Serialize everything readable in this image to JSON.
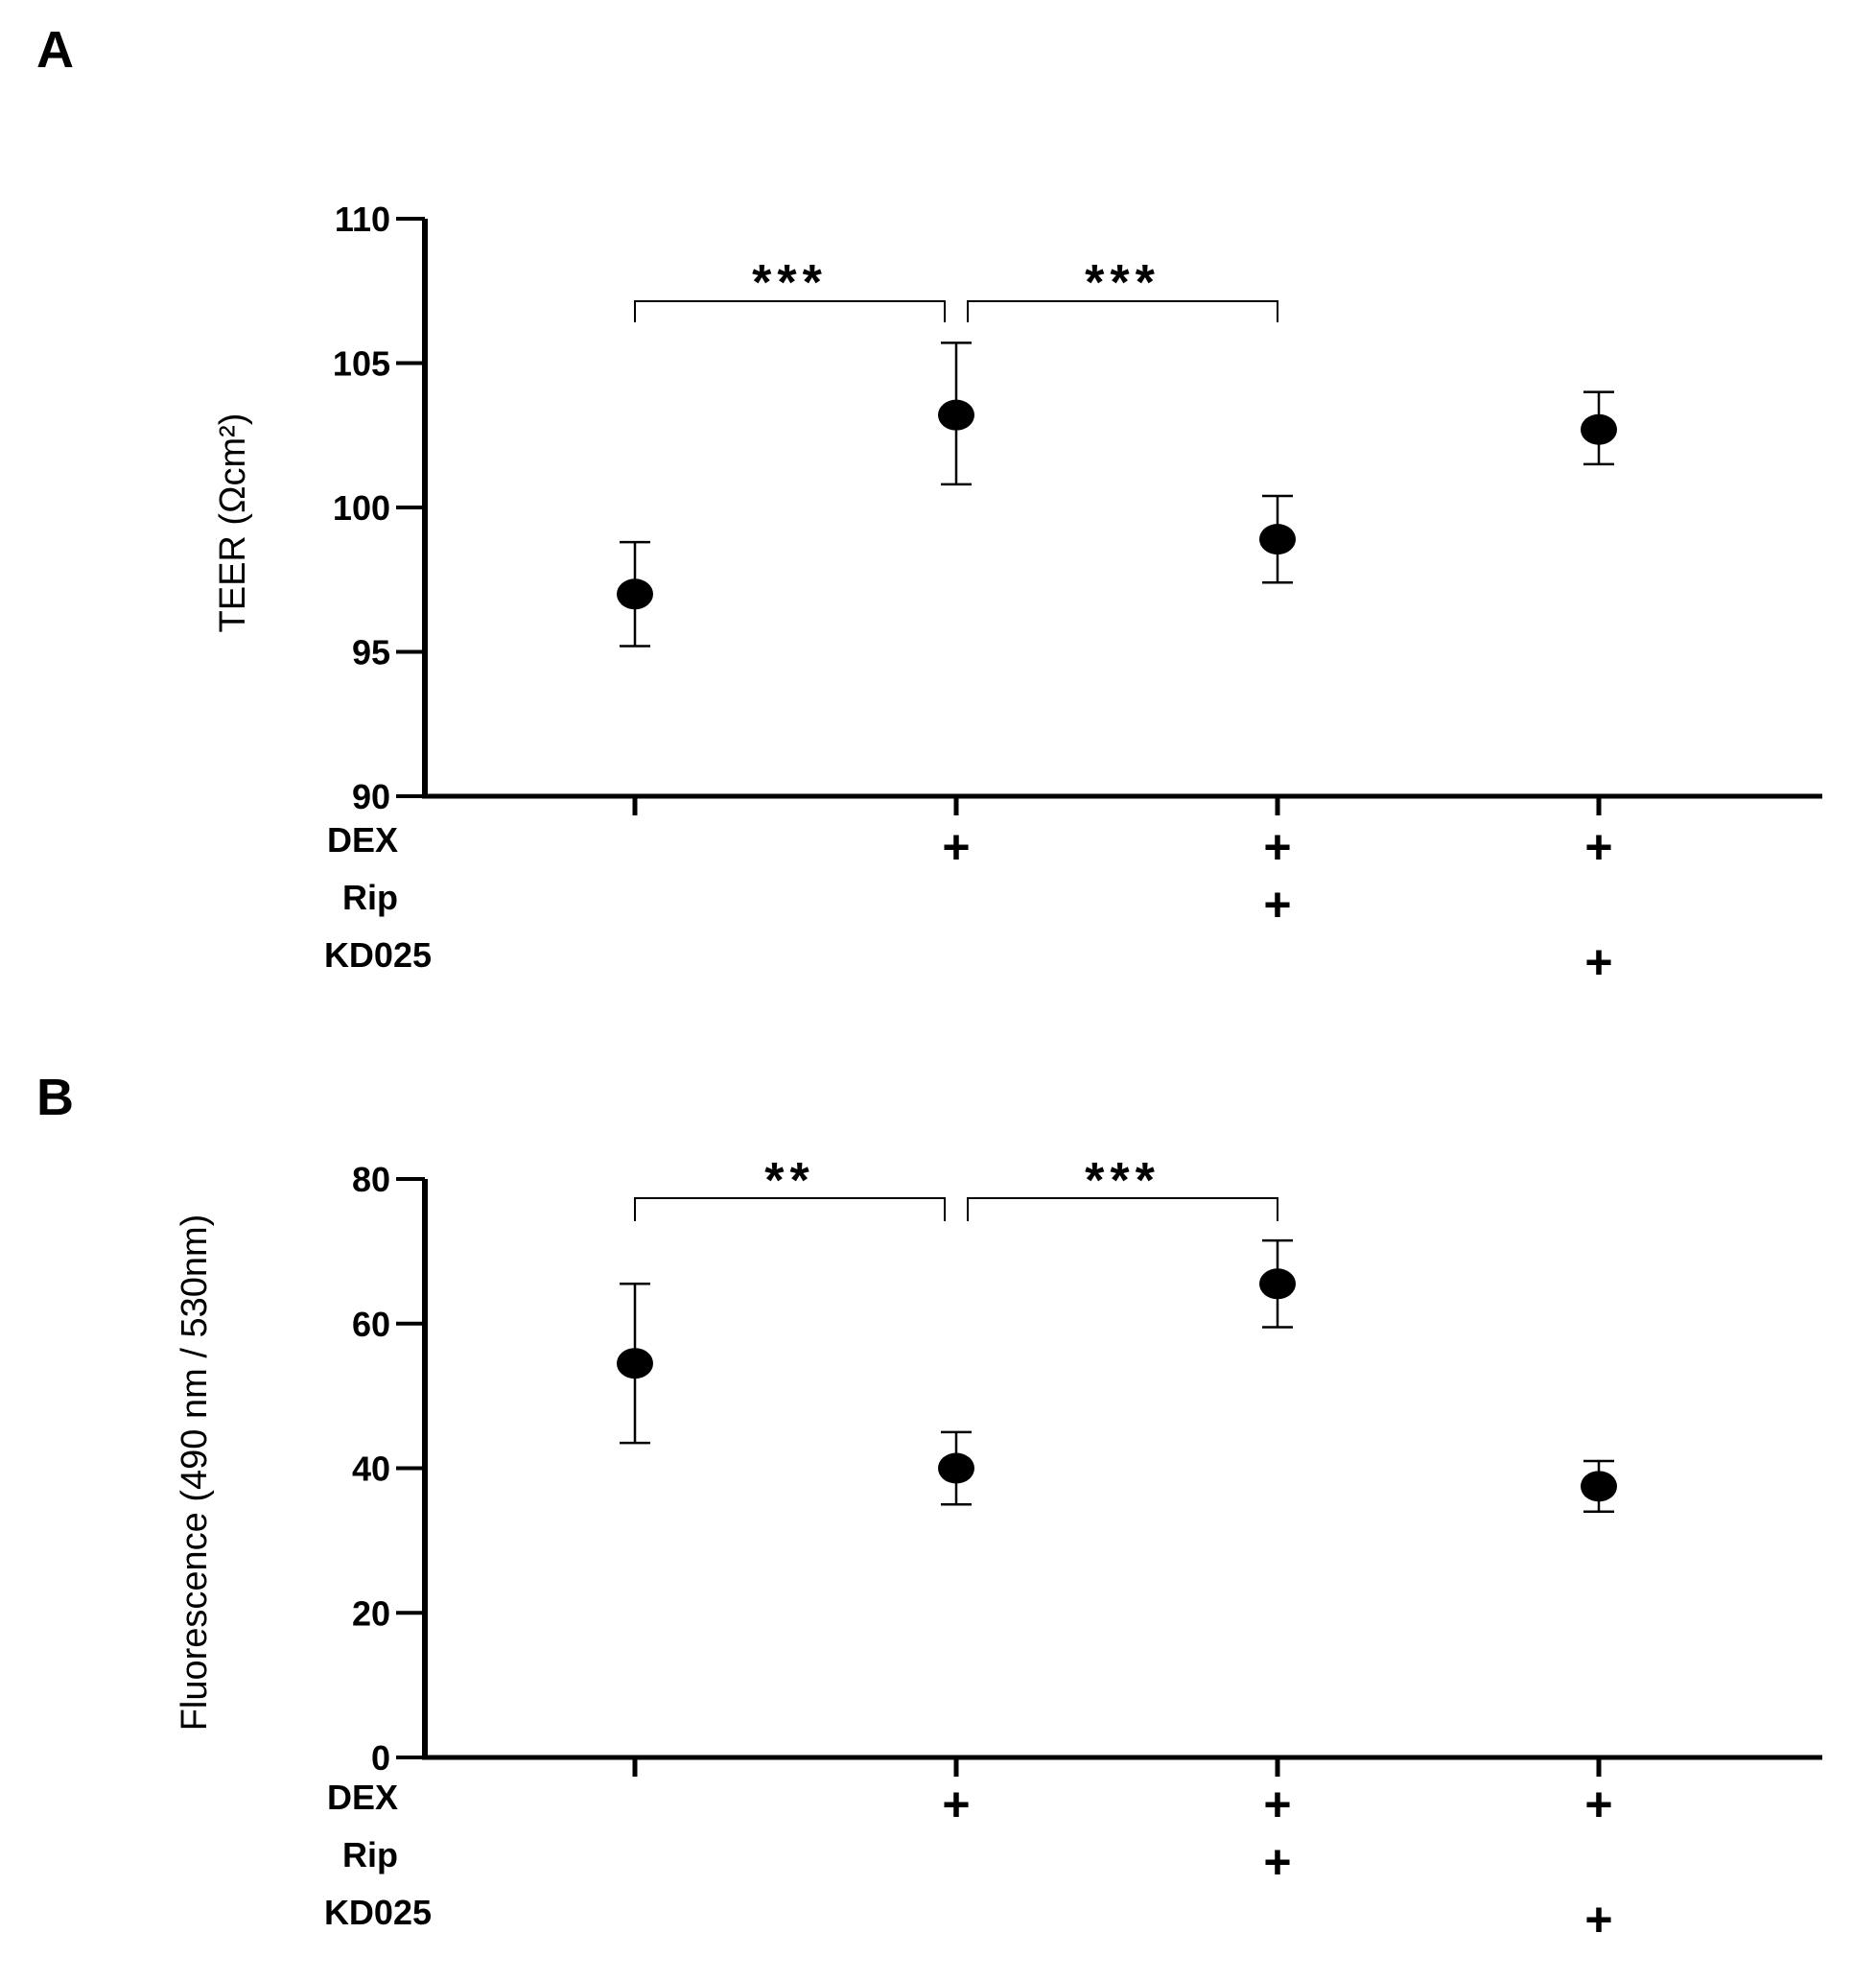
{
  "chart_data": [
    {
      "panel": "A",
      "type": "scatter",
      "ylabel": "TEER (Ωcm²)",
      "ylim": [
        90,
        110
      ],
      "yticks": [
        90,
        95,
        100,
        105,
        110
      ],
      "groups": [
        {
          "DEX": "",
          "Rip": "",
          "KD025": "",
          "mean": 97.0,
          "err_low": 95.2,
          "err_high": 98.8
        },
        {
          "DEX": "+",
          "Rip": "",
          "KD025": "",
          "mean": 103.2,
          "err_low": 100.8,
          "err_high": 105.7
        },
        {
          "DEX": "+",
          "Rip": "+",
          "KD025": "",
          "mean": 98.9,
          "err_low": 97.4,
          "err_high": 100.4
        },
        {
          "DEX": "+",
          "Rip": "",
          "KD025": "+",
          "mean": 102.7,
          "err_low": 101.5,
          "err_high": 104.0
        }
      ],
      "treatment_rows": [
        "DEX",
        "Rip",
        "KD025"
      ],
      "significance": [
        {
          "from": 0,
          "to": 1,
          "label": "***"
        },
        {
          "from": 1,
          "to": 2,
          "label": "***"
        }
      ]
    },
    {
      "panel": "B",
      "type": "scatter",
      "ylabel": "Fluorescence (490 nm / 530nm)",
      "ylim": [
        0,
        80
      ],
      "yticks": [
        0,
        20,
        40,
        60,
        80
      ],
      "groups": [
        {
          "DEX": "",
          "Rip": "",
          "KD025": "",
          "mean": 54.5,
          "err_low": 43.5,
          "err_high": 65.5
        },
        {
          "DEX": "+",
          "Rip": "",
          "KD025": "",
          "mean": 40.0,
          "err_low": 35.0,
          "err_high": 45.0
        },
        {
          "DEX": "+",
          "Rip": "+",
          "KD025": "",
          "mean": 65.5,
          "err_low": 59.5,
          "err_high": 71.5
        },
        {
          "DEX": "+",
          "Rip": "",
          "KD025": "+",
          "mean": 37.5,
          "err_low": 34.0,
          "err_high": 41.0
        }
      ],
      "treatment_rows": [
        "DEX",
        "Rip",
        "KD025"
      ],
      "significance": [
        {
          "from": 0,
          "to": 1,
          "label": "**"
        },
        {
          "from": 1,
          "to": 2,
          "label": "***"
        }
      ]
    }
  ]
}
